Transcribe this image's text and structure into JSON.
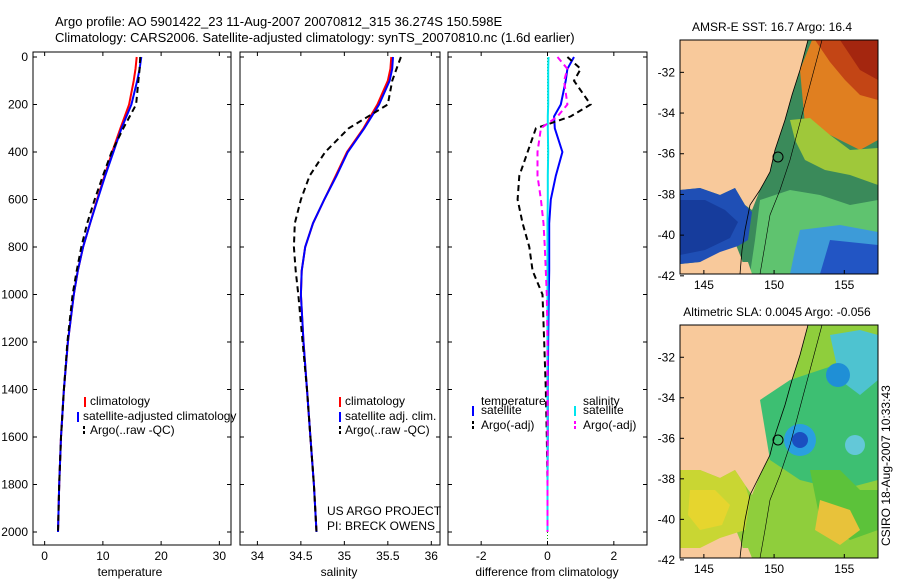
{
  "header": {
    "line1": "Argo profile: AO 5901422_23 11-Aug-2007 20070812_315 36.274S 150.598E",
    "line2": "Climatology: CARS2006. Satellite-adjusted climatology: synTS_20070810.nc (1.6d earlier)"
  },
  "side_label": "CSIRO 18-Aug-2007 10:33:43",
  "maps": [
    {
      "title": "AMSR-E SST: 16.7 Argo: 16.4",
      "yticks": [
        "-32",
        "-34",
        "-36",
        "-38",
        "-40",
        "-42"
      ],
      "xticks": [
        "145",
        "150",
        "155"
      ]
    },
    {
      "title": "Altimetric SLA: 0.0045 Argo: -0.056",
      "yticks": [
        "-32",
        "-34",
        "-36",
        "-38",
        "-40",
        "-42"
      ],
      "xticks": [
        "145",
        "150",
        "155"
      ]
    }
  ],
  "chart_data": [
    {
      "type": "line",
      "xlabel": "temperature",
      "xlim": [
        -2,
        32
      ],
      "ylim": [
        2000,
        0
      ],
      "xticks": [
        "0",
        "10",
        "20",
        "30"
      ],
      "yticks": [
        "0",
        "200",
        "400",
        "600",
        "800",
        "1000",
        "1200",
        "1400",
        "1600",
        "1800",
        "2000"
      ],
      "depth": [
        0,
        50,
        100,
        200,
        300,
        400,
        500,
        600,
        700,
        800,
        900,
        1000,
        1200,
        1400,
        1600,
        1800,
        2000
      ],
      "series": [
        {
          "name": "climatology",
          "color": "#ff0000",
          "style": "solid",
          "values": [
            15.8,
            15.6,
            15.3,
            14.5,
            13.0,
            11.6,
            10.3,
            9.0,
            7.8,
            6.6,
            5.7,
            5.0,
            4.0,
            3.3,
            2.8,
            2.5,
            2.3
          ]
        },
        {
          "name": "satellite-adjusted climatology",
          "color": "#0000ff",
          "style": "solid",
          "values": [
            16.6,
            16.3,
            15.9,
            14.9,
            13.2,
            11.8,
            10.4,
            9.1,
            7.8,
            6.6,
            5.7,
            5.0,
            4.0,
            3.3,
            2.8,
            2.5,
            2.3
          ]
        },
        {
          "name": "Argo(..raw -QC)",
          "color": "#000000",
          "style": "dashed",
          "values": [
            16.4,
            16.3,
            16.1,
            15.7,
            13.5,
            11.5,
            10.0,
            8.6,
            7.3,
            6.3,
            5.5,
            4.8,
            3.9,
            3.3,
            2.8,
            2.5,
            2.3
          ]
        }
      ]
    },
    {
      "type": "line",
      "xlabel": "salinity",
      "xlim": [
        33.8,
        36.1
      ],
      "ylim": [
        2000,
        0
      ],
      "xticks": [
        "34",
        "34.5",
        "35",
        "35.5",
        "36"
      ],
      "depth": [
        0,
        50,
        100,
        200,
        300,
        400,
        500,
        600,
        700,
        800,
        900,
        1000,
        1200,
        1400,
        1600,
        1800,
        2000
      ],
      "series": [
        {
          "name": "climatology",
          "color": "#ff0000",
          "style": "solid",
          "values": [
            35.54,
            35.53,
            35.5,
            35.38,
            35.22,
            35.03,
            34.9,
            34.77,
            34.64,
            34.55,
            34.51,
            34.5,
            34.53,
            34.57,
            34.61,
            34.65,
            34.68
          ]
        },
        {
          "name": "satellite adj. clim.",
          "color": "#0000ff",
          "style": "solid",
          "values": [
            35.56,
            35.55,
            35.52,
            35.4,
            35.23,
            35.04,
            34.91,
            34.77,
            34.64,
            34.55,
            34.51,
            34.5,
            34.53,
            34.57,
            34.61,
            34.65,
            34.68
          ]
        },
        {
          "name": "Argo(..raw -QC)",
          "color": "#000000",
          "style": "dashed",
          "values": [
            35.65,
            35.6,
            35.55,
            35.5,
            35.05,
            34.78,
            34.6,
            34.5,
            34.43,
            34.42,
            34.44,
            34.47,
            34.52,
            34.57,
            34.61,
            34.65,
            34.68
          ]
        }
      ],
      "annotation": [
        "US ARGO PROJECT",
        "PI: BRECK OWENS"
      ]
    },
    {
      "type": "line",
      "xlabel": "difference from climatology",
      "xlim": [
        -3,
        3
      ],
      "ylim": [
        2000,
        0
      ],
      "xticks": [
        "-2",
        "0",
        "2"
      ],
      "depth": [
        0,
        50,
        100,
        200,
        250,
        300,
        400,
        500,
        600,
        700,
        800,
        900,
        1000,
        1200,
        1400,
        1600,
        1800,
        2000
      ],
      "series": [
        {
          "group": "temperature",
          "name": "satellite",
          "color": "#0000ff",
          "style": "solid",
          "values": [
            0.8,
            0.6,
            0.55,
            0.4,
            0.2,
            0.22,
            0.45,
            0.25,
            0.1,
            0.05,
            0.05,
            0.05,
            0.04,
            0.02,
            0.01,
            0.01,
            0.0,
            0.0
          ]
        },
        {
          "group": "temperature",
          "name": "Argo(-adj)",
          "color": "#000000",
          "style": "dashed",
          "values": [
            0.6,
            1.0,
            0.8,
            1.3,
            0.7,
            -0.35,
            -0.6,
            -0.85,
            -0.9,
            -0.75,
            -0.55,
            -0.45,
            -0.15,
            -0.1,
            -0.05,
            -0.02,
            0.0,
            0.0
          ]
        },
        {
          "group": "salinity",
          "name": "satellite",
          "color": "#00e5ee",
          "style": "solid",
          "values": [
            0.03,
            0.02,
            0.02,
            0.02,
            0.01,
            0.01,
            0.02,
            0.01,
            0.01,
            0.0,
            0.0,
            0.0,
            0.0,
            0.0,
            0.0,
            0.0,
            0.0,
            0.0
          ]
        },
        {
          "group": "salinity",
          "name": "Argo(-adj)",
          "color": "#ff00ff",
          "style": "dashed",
          "values": [
            0.3,
            0.6,
            0.5,
            0.6,
            0.3,
            -0.2,
            -0.3,
            -0.3,
            -0.2,
            -0.12,
            -0.08,
            -0.05,
            -0.02,
            0.0,
            0.0,
            0.0,
            0.0,
            0.0
          ]
        }
      ],
      "legend_groups": [
        "temperature",
        "salinity"
      ]
    }
  ]
}
